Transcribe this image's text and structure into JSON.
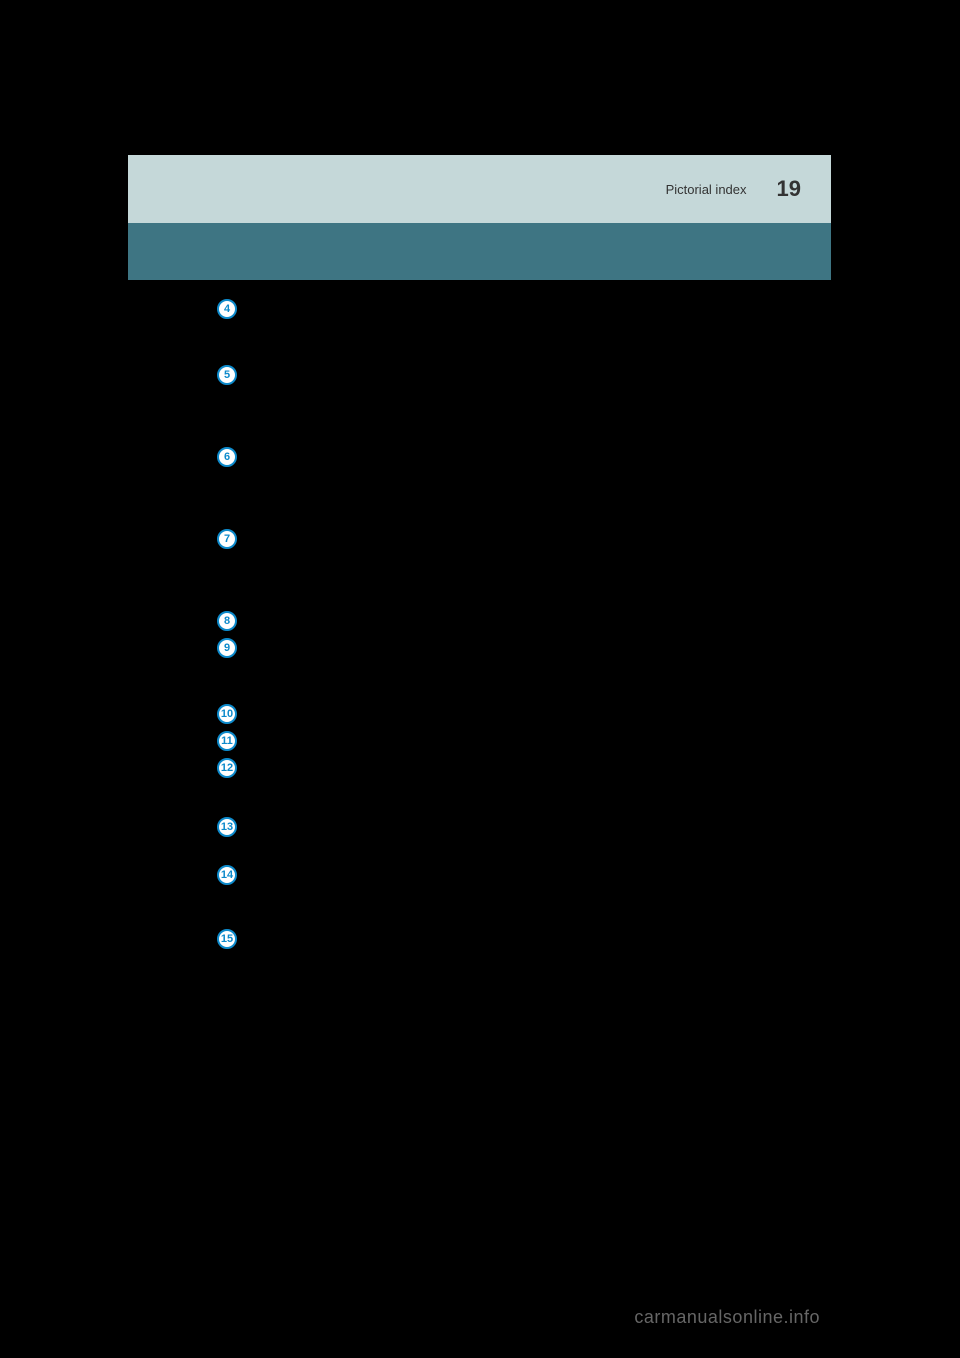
{
  "header": {
    "section_title": "Pictorial index",
    "page_number": "19"
  },
  "markers": [
    {
      "num": "4",
      "class": "marker-4"
    },
    {
      "num": "5",
      "class": "marker-5"
    },
    {
      "num": "6",
      "class": "marker-6"
    },
    {
      "num": "7",
      "class": "marker-7"
    },
    {
      "num": "8",
      "class": "marker-8"
    },
    {
      "num": "9",
      "class": "marker-9"
    },
    {
      "num": "10",
      "class": "marker-10"
    },
    {
      "num": "11",
      "class": "marker-11"
    },
    {
      "num": "12",
      "class": "marker-12"
    },
    {
      "num": "13",
      "class": "marker-13"
    },
    {
      "num": "14",
      "class": "marker-14"
    },
    {
      "num": "15",
      "class": "marker-15"
    }
  ],
  "watermark": "carmanualsonline.info",
  "colors": {
    "page_bg": "#000000",
    "header_bg": "#c5d8d9",
    "band_bg": "#3e7583",
    "marker_border": "#0d8acb",
    "marker_fill": "#ffffff",
    "marker_text": "#0d8acb",
    "header_text": "#333333",
    "watermark_text": "#666666"
  }
}
